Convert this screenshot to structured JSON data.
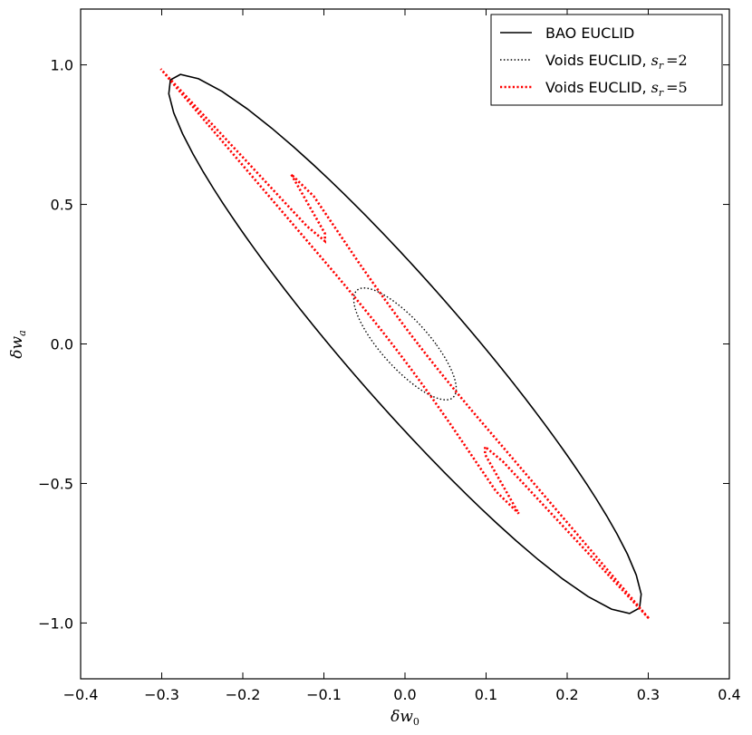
{
  "chart_data": {
    "type": "line",
    "title": "",
    "xlabel": "δw_0",
    "ylabel": "δw_a",
    "xlim": [
      -0.4,
      0.4
    ],
    "ylim": [
      -1.2,
      1.2
    ],
    "grid": false,
    "legend_position": "top-right",
    "x_ticks": [
      {
        "value": -0.4,
        "label": "−0.4"
      },
      {
        "value": -0.3,
        "label": "−0.3"
      },
      {
        "value": -0.2,
        "label": "−0.2"
      },
      {
        "value": -0.1,
        "label": "−0.1"
      },
      {
        "value": 0.0,
        "label": "0.0"
      },
      {
        "value": 0.1,
        "label": "0.1"
      },
      {
        "value": 0.2,
        "label": "0.2"
      },
      {
        "value": 0.3,
        "label": "0.3"
      },
      {
        "value": 0.4,
        "label": "0.4"
      }
    ],
    "y_ticks": [
      {
        "value": 1.0,
        "label": "1.0"
      },
      {
        "value": 0.5,
        "label": "0.5"
      },
      {
        "value": 0.0,
        "label": "0.0"
      },
      {
        "value": -0.5,
        "label": "−0.5"
      },
      {
        "value": -1.0,
        "label": "−1.0"
      }
    ],
    "series": [
      {
        "name": "BAO EUCLID",
        "color": "#000000",
        "style": "solid",
        "points": [
          [
            -0.205,
            0.905
          ],
          [
            0.0,
            0.0
          ],
          [
            0.205,
            -0.905
          ],
          [
            -0.218,
            0.85
          ],
          [
            -0.09,
            0.55
          ],
          [
            0.11,
            -0.05
          ],
          [
            0.218,
            -0.85
          ],
          [
            0.09,
            -0.55
          ],
          [
            -0.11,
            0.05
          ]
        ]
      },
      {
        "name": "Voids EUCLID, s_r =2",
        "color": "#000000",
        "style": "dotted",
        "points": [
          [
            -0.06,
            0.19
          ],
          [
            0.0,
            0.0
          ],
          [
            0.06,
            -0.19
          ],
          [
            -0.055,
            0.08
          ],
          [
            0.063,
            -0.15
          ],
          [
            0.055,
            -0.08
          ],
          [
            -0.063,
            0.15
          ]
        ]
      },
      {
        "name": "Voids EUCLID, s_r =5",
        "color": "#ff0000",
        "style": "dotted",
        "points": [
          [
            -0.1,
            0.475
          ],
          [
            0.0,
            0.0
          ],
          [
            0.1,
            -0.475
          ],
          [
            -0.112,
            0.34
          ],
          [
            0.112,
            -0.34
          ],
          [
            -0.03,
            0.18
          ],
          [
            0.03,
            -0.18
          ]
        ]
      }
    ]
  },
  "legend": {
    "entries": [
      {
        "label": "BAO EUCLID",
        "math": "",
        "color": "#000000",
        "style": "solid"
      },
      {
        "label": "Voids EUCLID, ",
        "math": "s_r =2",
        "color": "#000000",
        "style": "dotted"
      },
      {
        "label": "Voids EUCLID, ",
        "math": "s_r =5",
        "color": "#ff0000",
        "style": "dotted"
      }
    ]
  }
}
